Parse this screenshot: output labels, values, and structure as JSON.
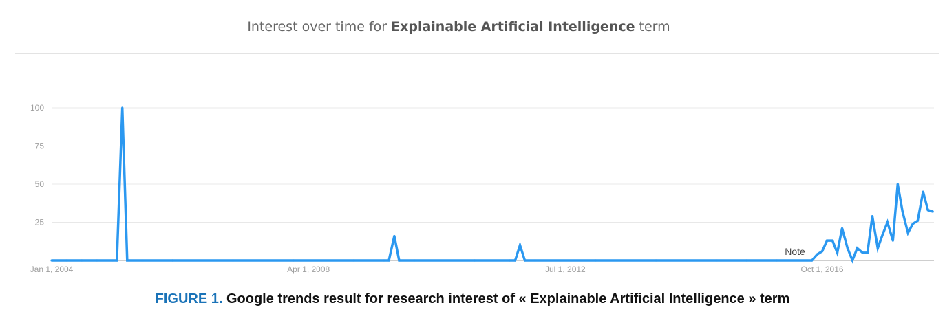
{
  "title": {
    "prefix": "Interest over time for ",
    "term": "Explainable Artificial Intelligence",
    "suffix": " term"
  },
  "caption": {
    "label": "FIGURE 1.",
    "text": " Google trends result for research interest of « Explainable Artificial Intelligence » term"
  },
  "colors": {
    "line": "#2b98f0",
    "grid": "#e8e8e8",
    "axis": "#9e9e9e",
    "tick_text": "#a0a0a0",
    "caption_label": "#1a73b8"
  },
  "chart_data": {
    "type": "line",
    "series": [
      {
        "values": [
          [
            2004.0,
            0
          ],
          [
            2004.25,
            0
          ],
          [
            2004.5,
            0
          ],
          [
            2004.75,
            0
          ],
          [
            2005.0,
            0
          ],
          [
            2005.08,
            0
          ],
          [
            2005.17,
            100
          ],
          [
            2005.25,
            0
          ],
          [
            2005.5,
            0
          ],
          [
            2006.0,
            0
          ],
          [
            2007.0,
            0
          ],
          [
            2008.0,
            0
          ],
          [
            2009.0,
            0
          ],
          [
            2009.5,
            0
          ],
          [
            2009.58,
            0
          ],
          [
            2009.67,
            16
          ],
          [
            2009.75,
            0
          ],
          [
            2010.0,
            0
          ],
          [
            2011.0,
            0
          ],
          [
            2011.58,
            0
          ],
          [
            2011.67,
            0
          ],
          [
            2011.75,
            10
          ],
          [
            2011.83,
            0
          ],
          [
            2012.0,
            0
          ],
          [
            2013.0,
            0
          ],
          [
            2014.0,
            0
          ],
          [
            2015.0,
            0
          ],
          [
            2015.5,
            0
          ],
          [
            2016.0,
            0
          ],
          [
            2016.5,
            0
          ],
          [
            2016.58,
            0
          ],
          [
            2016.67,
            4
          ],
          [
            2016.75,
            6
          ],
          [
            2016.83,
            13
          ],
          [
            2016.92,
            13
          ],
          [
            2017.0,
            5
          ],
          [
            2017.08,
            21
          ],
          [
            2017.17,
            8
          ],
          [
            2017.25,
            0
          ],
          [
            2017.33,
            8
          ],
          [
            2017.42,
            5
          ],
          [
            2017.5,
            5
          ],
          [
            2017.58,
            29
          ],
          [
            2017.67,
            8
          ],
          [
            2017.75,
            17
          ],
          [
            2017.83,
            25
          ],
          [
            2017.92,
            13
          ],
          [
            2018.0,
            50
          ],
          [
            2018.08,
            32
          ],
          [
            2018.17,
            18
          ],
          [
            2018.25,
            24
          ],
          [
            2018.33,
            26
          ],
          [
            2018.42,
            45
          ],
          [
            2018.5,
            33
          ],
          [
            2018.58,
            32
          ]
        ]
      }
    ],
    "xlim": [
      2004.0,
      2018.6
    ],
    "ylim": [
      0,
      100
    ],
    "yticks": [
      25,
      50,
      75,
      100
    ],
    "xticks": [
      {
        "value": 2004.0,
        "label": "Jan 1, 2004"
      },
      {
        "value": 2008.25,
        "label": "Apr 1, 2008"
      },
      {
        "value": 2012.5,
        "label": "Jul 1, 2012"
      },
      {
        "value": 2016.75,
        "label": "Oct 1, 2016"
      }
    ],
    "annotation": {
      "x": 2016.3,
      "text": "Note"
    },
    "grid": true
  }
}
